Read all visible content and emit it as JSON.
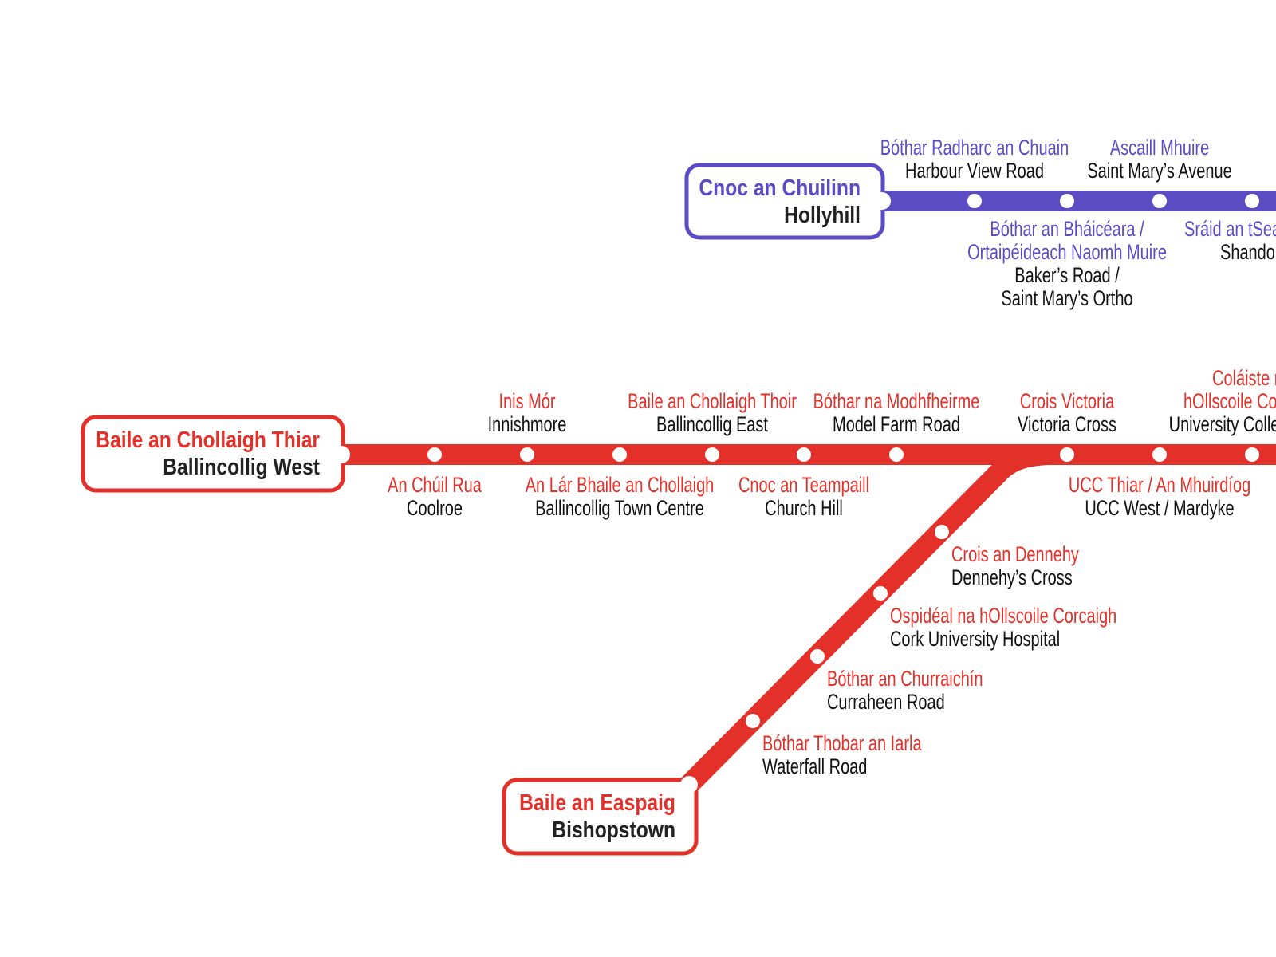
{
  "colors": {
    "red_line": "#e3312a",
    "purple_line": "#5b4cc4",
    "english_text": "#111111",
    "station_dot": "#ffffff"
  },
  "termini": {
    "ballincollig_west": {
      "irish": "Baile an Chollaigh Thiar",
      "english": "Ballincollig West"
    },
    "hollyhill": {
      "irish": "Cnoc an Chuilinn",
      "english": "Hollyhill"
    },
    "bishopstown": {
      "irish": "Baile an Easpaig",
      "english": "Bishopstown"
    }
  },
  "red_main_stations": [
    {
      "irish": [
        "An Chúil Rua"
      ],
      "english": [
        "Coolroe"
      ]
    },
    {
      "irish": [
        "Inis Mór"
      ],
      "english": [
        "Innishmore"
      ]
    },
    {
      "irish": [
        "An Lár Bhaile an Chollaigh"
      ],
      "english": [
        "Ballincollig Town Centre"
      ]
    },
    {
      "irish": [
        "Baile an Chollaigh Thoir"
      ],
      "english": [
        "Ballincollig East"
      ]
    },
    {
      "irish": [
        "Cnoc an Teampaill"
      ],
      "english": [
        "Church Hill"
      ]
    },
    {
      "irish": [
        "Bóthar na Modhfheirme"
      ],
      "english": [
        "Model Farm Road"
      ]
    },
    {
      "irish": [
        "Crois Victoria"
      ],
      "english": [
        "Victoria Cross"
      ]
    },
    {
      "irish": [
        "UCC Thiar / An Mhuirdíog"
      ],
      "english": [
        "UCC West / Mardyke"
      ]
    },
    {
      "irish": [
        "Coláiste na",
        "hOllscoile Corcaigh"
      ],
      "english": [
        "University College Cork"
      ]
    }
  ],
  "red_branch_stations": [
    {
      "irish": [
        "Crois an Dennehy"
      ],
      "english": [
        "Dennehy’s Cross"
      ]
    },
    {
      "irish": [
        "Ospidéal na hOllscoile Corcaigh"
      ],
      "english": [
        "Cork University Hospital"
      ]
    },
    {
      "irish": [
        "Bóthar an Churraichín"
      ],
      "english": [
        "Curraheen Road"
      ]
    },
    {
      "irish": [
        "Bóthar Thobar an Iarla"
      ],
      "english": [
        "Waterfall Road"
      ]
    }
  ],
  "purple_stations": [
    {
      "irish": [
        "Bóthar Radharc an Chuain"
      ],
      "english": [
        "Harbour View Road"
      ]
    },
    {
      "irish": [
        "Bóthar an Bháicéara /",
        "Ortaipéideach Naomh Muire"
      ],
      "english": [
        "Baker’s Road /",
        "Saint Mary’s Ortho"
      ]
    },
    {
      "irish": [
        "Ascaill Mhuire"
      ],
      "english": [
        "Saint Mary’s Avenue"
      ]
    },
    {
      "irish": [
        "Sráid an tSeandúin"
      ],
      "english": [
        "Shandon"
      ]
    }
  ]
}
